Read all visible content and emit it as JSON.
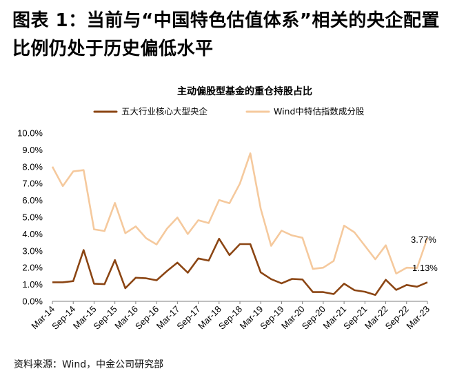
{
  "figure": {
    "title_line1": "图表 1：当前与“中国特色估值体系”相关的央企配置",
    "title_line2": "比例仍处于历史偏低水平",
    "source": "资料来源：Wind，中金公司研究部"
  },
  "chart_data": {
    "type": "line",
    "title": "主动偏股型基金的重仓持股占比",
    "xlabel": "",
    "ylabel": "",
    "ylim": [
      0,
      10
    ],
    "y_ticks": [
      "0.0%",
      "1.0%",
      "2.0%",
      "3.0%",
      "4.0%",
      "5.0%",
      "6.0%",
      "7.0%",
      "8.0%",
      "9.0%",
      "10.0%"
    ],
    "x_tick_labels": [
      "Mar-14",
      "Sep-14",
      "Mar-15",
      "Sep-15",
      "Mar-16",
      "Sep-16",
      "Mar-17",
      "Sep-17",
      "Mar-18",
      "Sep-18",
      "Mar-19",
      "Sep-19",
      "Mar-20",
      "Sep-20",
      "Mar-21",
      "Sep-21",
      "Mar-22",
      "Sep-22",
      "Mar-23"
    ],
    "categories": [
      "Mar-14",
      "Jun-14",
      "Sep-14",
      "Dec-14",
      "Mar-15",
      "Jun-15",
      "Sep-15",
      "Dec-15",
      "Mar-16",
      "Jun-16",
      "Sep-16",
      "Dec-16",
      "Mar-17",
      "Jun-17",
      "Sep-17",
      "Dec-17",
      "Mar-18",
      "Jun-18",
      "Sep-18",
      "Dec-18",
      "Mar-19",
      "Jun-19",
      "Sep-19",
      "Dec-19",
      "Mar-20",
      "Jun-20",
      "Sep-20",
      "Dec-20",
      "Mar-21",
      "Jun-21",
      "Sep-21",
      "Dec-21",
      "Mar-22",
      "Jun-22",
      "Sep-22",
      "Dec-22",
      "Mar-23"
    ],
    "grid": false,
    "legend_position": "top",
    "series": [
      {
        "name": "五大行业核心大型央企",
        "color": "#8B4513",
        "values": [
          1.13,
          1.13,
          1.2,
          3.05,
          1.05,
          1.02,
          2.45,
          0.78,
          1.4,
          1.37,
          1.25,
          1.8,
          2.3,
          1.7,
          2.55,
          2.42,
          3.72,
          2.75,
          3.4,
          3.4,
          1.72,
          1.32,
          1.07,
          1.33,
          1.3,
          0.55,
          0.55,
          0.43,
          1.05,
          0.66,
          0.57,
          0.38,
          1.28,
          0.68,
          0.97,
          0.87,
          1.13
        ]
      },
      {
        "name": "Wind中特估指数成分股",
        "color": "#F5C99D",
        "values": [
          8.0,
          6.85,
          7.72,
          7.8,
          4.28,
          4.18,
          5.85,
          4.05,
          4.45,
          3.75,
          3.38,
          4.32,
          4.98,
          4.0,
          4.82,
          4.65,
          6.02,
          5.83,
          7.0,
          8.8,
          5.5,
          3.3,
          4.2,
          3.92,
          3.78,
          1.93,
          2.0,
          2.4,
          4.5,
          4.1,
          3.3,
          2.5,
          3.33,
          1.65,
          2.0,
          1.98,
          3.77
        ]
      }
    ],
    "annotations": [
      "3.77%",
      "1.13%"
    ]
  }
}
